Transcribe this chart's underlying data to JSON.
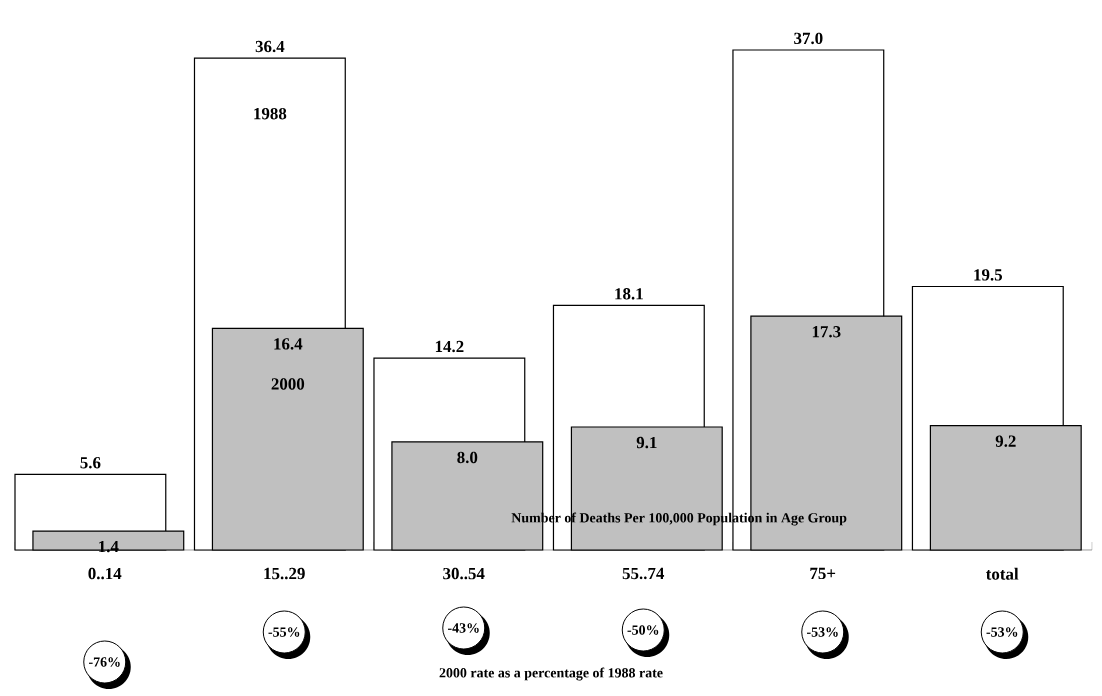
{
  "chart_data": {
    "type": "bar",
    "categories": [
      "0..14",
      "15..29",
      "30..54",
      "55..74",
      "75+",
      "total"
    ],
    "series": [
      {
        "name": "1988",
        "color": "#ffffff",
        "values": [
          5.6,
          36.4,
          14.2,
          18.1,
          37.0,
          19.5
        ],
        "value_labels": [
          "5.6",
          "36.4",
          "14.2",
          "18.1",
          "37.0",
          "19.5"
        ]
      },
      {
        "name": "2000",
        "color": "#c0c0c0",
        "values": [
          1.4,
          16.4,
          8.0,
          9.1,
          17.3,
          9.2
        ],
        "value_labels": [
          "1.4",
          "16.4",
          "8.0",
          "9.1",
          "17.3",
          "9.2"
        ]
      }
    ],
    "legend": false,
    "annotations": [
      "Number of Deaths Per 100,000 Population in Age Group",
      "-76%",
      "-55%",
      "-43%",
      "-50%",
      "-53%",
      "-53%",
      "2000 rate as a percentage of 1988 rate"
    ]
  }
}
